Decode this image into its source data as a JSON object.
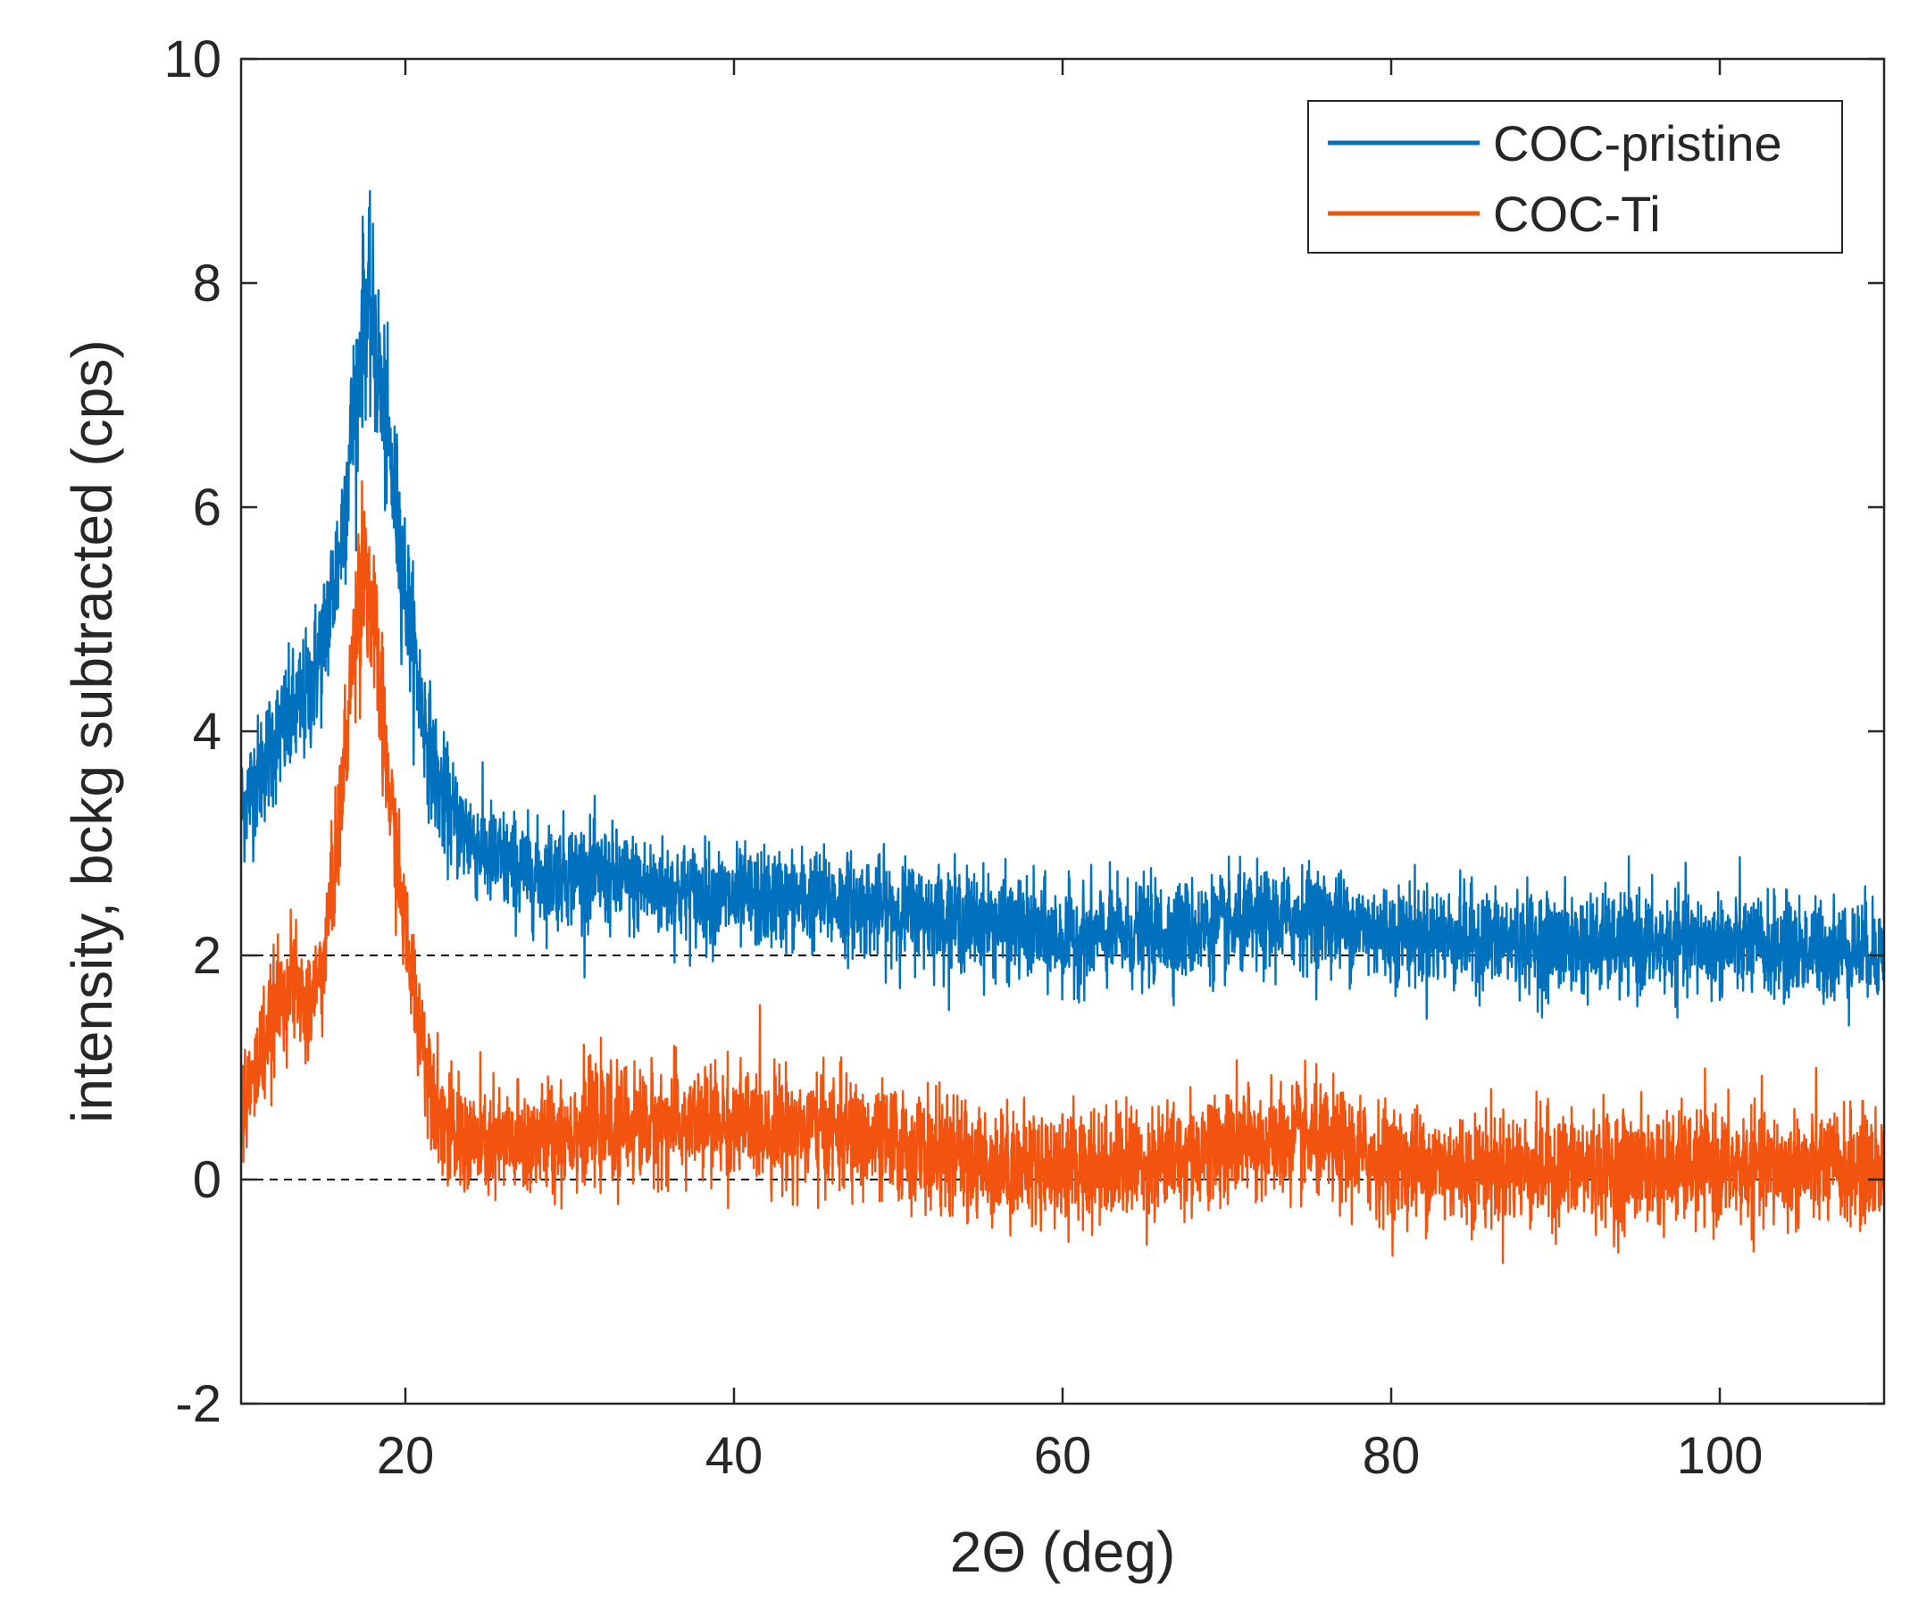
{
  "chart_data": {
    "type": "line",
    "title": "",
    "xlabel": "2Θ (deg)",
    "ylabel": "intensity, bckg subtracted (cps)",
    "xlim": [
      10,
      110
    ],
    "ylim": [
      -2,
      10
    ],
    "xticks": [
      20,
      40,
      60,
      80,
      100
    ],
    "yticks": [
      -2,
      0,
      2,
      4,
      6,
      8,
      10
    ],
    "reference_lines": [
      0,
      2
    ],
    "legend": {
      "location": "top-right"
    },
    "series": [
      {
        "name": "COC-pristine",
        "color": "#0072BD",
        "noise": 0.22,
        "x": [
          10,
          11,
          12,
          13,
          14,
          15,
          16,
          17,
          17.5,
          18,
          19,
          20,
          21,
          22,
          23,
          25,
          28,
          30,
          35,
          40,
          45,
          50,
          55,
          60,
          65,
          70,
          75,
          80,
          85,
          90,
          95,
          100,
          105,
          110
        ],
        "values": [
          3.3,
          3.6,
          3.9,
          4.1,
          4.3,
          4.8,
          5.6,
          7.0,
          7.8,
          7.6,
          6.5,
          5.3,
          4.2,
          3.5,
          3.2,
          2.9,
          2.7,
          2.75,
          2.6,
          2.5,
          2.5,
          2.4,
          2.3,
          2.15,
          2.2,
          2.25,
          2.35,
          2.2,
          2.15,
          2.1,
          2.1,
          2.1,
          2.05,
          2.05
        ]
      },
      {
        "name": "COC-Ti",
        "color": "#F25410",
        "noise": 0.25,
        "x": [
          10,
          11,
          12,
          13,
          14,
          15,
          16,
          17,
          17.5,
          18,
          19,
          20,
          21,
          22,
          23,
          25,
          28,
          30,
          35,
          40,
          45,
          50,
          55,
          60,
          65,
          70,
          75,
          80,
          85,
          90,
          95,
          100,
          105,
          110
        ],
        "values": [
          0.6,
          1.0,
          1.5,
          1.8,
          1.5,
          1.9,
          3.2,
          5.0,
          5.6,
          5.0,
          3.5,
          2.2,
          1.3,
          0.6,
          0.35,
          0.3,
          0.35,
          0.45,
          0.5,
          0.5,
          0.45,
          0.3,
          0.15,
          0.12,
          0.15,
          0.3,
          0.35,
          0.15,
          0.1,
          0.1,
          0.1,
          0.1,
          0.1,
          0.1
        ]
      }
    ]
  }
}
